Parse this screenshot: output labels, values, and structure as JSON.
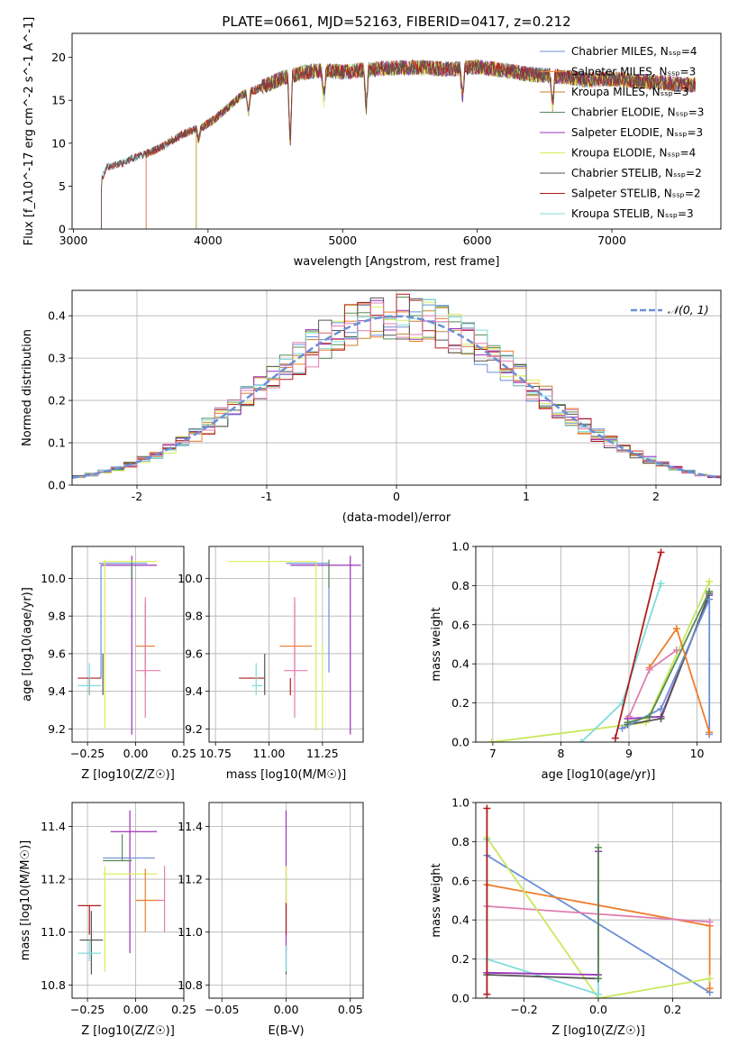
{
  "figure": {
    "title": "PLATE=0661, MJD=52163, FIBERID=0417, z=0.212"
  },
  "series_colors": {
    "chabrier_miles": "#6a8fd6",
    "salpeter_miles": "#ee7d2a",
    "kroupa_miles": "#c9822b",
    "chabrier_elodie": "#558b55",
    "salpeter_elodie": "#9b30b8",
    "kroupa_elodie": "#d9ee55",
    "chabrier_stelib": "#555555",
    "salpeter_stelib": "#b01c1c",
    "kroupa_stelib": "#7fdcdc",
    "extra_pink": "#e07fb0",
    "extra_lime": "#c8e85a",
    "normal_curve": "#6a8fd6"
  },
  "chart_data": [
    {
      "id": "spectrum",
      "type": "line",
      "title": "PLATE=0661, MJD=52163, FIBERID=0417, z=0.212",
      "xlabel": "wavelength [Angstrom, rest frame]",
      "ylabel": "Flux [f_λ10^-17 erg cm^-2 s^-1 A^-1]",
      "xlim": [
        2990,
        7810
      ],
      "ylim": [
        0,
        22.8
      ],
      "xticks": [
        3000,
        4000,
        5000,
        6000,
        7000
      ],
      "yticks": [
        0,
        5,
        10,
        15,
        20
      ],
      "grid": false,
      "legend_position": "right",
      "legend": [
        {
          "label": "Chabrier MILES, N_SSP=4",
          "color": "#6a8fd6"
        },
        {
          "label": "Salpeter MILES, N_SSP=3",
          "color": "#ee7d2a"
        },
        {
          "label": "Kroupa MILES, N_SSP=3",
          "color": "#c9822b"
        },
        {
          "label": "Chabrier ELODIE, N_SSP=3",
          "color": "#558b55"
        },
        {
          "label": "Salpeter ELODIE, N_SSP=3",
          "color": "#9b30b8"
        },
        {
          "label": "Kroupa ELODIE, N_SSP=4",
          "color": "#d9ee55"
        },
        {
          "label": "Chabrier STELIB, N_SSP=2",
          "color": "#555555"
        },
        {
          "label": "Salpeter STELIB, N_SSP=2",
          "color": "#b01c1c"
        },
        {
          "label": "Kroupa STELIB, N_SSP=3",
          "color": "#7fdcdc"
        }
      ],
      "continuum": {
        "x": [
          3200,
          3210,
          3250,
          3350,
          3450,
          3550,
          3650,
          3750,
          3850,
          3950,
          4050,
          4150,
          4250,
          4350,
          4450,
          4550,
          4700,
          4850,
          5000,
          5200,
          5400,
          5600,
          5800,
          6000,
          6200,
          6400,
          6600,
          6800,
          7000,
          7200,
          7400,
          7600
        ],
        "y": [
          0,
          6,
          7.2,
          7.6,
          8.3,
          8.8,
          9.5,
          10.5,
          11.3,
          11.8,
          12.8,
          14.2,
          15.6,
          16.2,
          16.9,
          17.6,
          18.2,
          18.5,
          18.3,
          18.6,
          18.8,
          18.8,
          18.6,
          18.9,
          18.5,
          18.0,
          17.8,
          17.4,
          17.5,
          17.2,
          17.0,
          16.8
        ]
      },
      "start_wavelengths": {
        "stelib": 3205,
        "elodie": 3910,
        "miles": 3540
      },
      "features": [
        {
          "name": "dip",
          "x": 3930,
          "y": 10.3
        },
        {
          "name": "dip",
          "x": 4300,
          "y": 13.6
        },
        {
          "name": "spike",
          "x": 4610,
          "y": 9.6
        },
        {
          "name": "dip",
          "x": 4860,
          "y": 15.0
        },
        {
          "name": "dip",
          "x": 5175,
          "y": 13.8
        },
        {
          "name": "dip",
          "x": 5890,
          "y": 15.2
        },
        {
          "name": "dip",
          "x": 6560,
          "y": 14.4
        }
      ]
    },
    {
      "id": "residual-histogram",
      "type": "histogram",
      "xlabel": "(data-model)/error",
      "ylabel": "Normed distribution",
      "xlim": [
        -2.5,
        2.5
      ],
      "ylim": [
        0,
        0.46
      ],
      "xticks": [
        -2,
        -1,
        0,
        1,
        2
      ],
      "yticks": [
        0.0,
        0.1,
        0.2,
        0.3,
        0.4
      ],
      "grid": true,
      "legend": [
        {
          "label": "𝒩(0, 1)",
          "color": "#6a8fd6",
          "style": "dashed"
        }
      ],
      "legend_position": "top-right",
      "bin_width": 0.1
    },
    {
      "id": "age-vs-z",
      "type": "errorbar",
      "xlabel": "Z [log10(Z/Z☉)]",
      "ylabel": "age [log10(age/yr)]",
      "xlim": [
        -0.33,
        0.25
      ],
      "ylim": [
        9.13,
        10.17
      ],
      "xticks": [
        -0.25,
        0.0,
        0.25
      ],
      "xtick_labels": [
        "−0.25",
        "0.00",
        "0.25"
      ],
      "yticks": [
        9.2,
        9.4,
        9.6,
        9.8,
        10.0
      ],
      "grid": true,
      "points": [
        {
          "color": "#6a8fd6",
          "x": -0.04,
          "xerr": [
            0.15,
            0.1
          ],
          "y": 10.08,
          "yerr": [
            0.0,
            0.0
          ]
        },
        {
          "color": "#6a8fd6",
          "x": -0.18,
          "xerr": [
            0.0,
            0.0
          ],
          "y": 9.47,
          "yerr": [
            0.0,
            0.6
          ]
        },
        {
          "color": "#9b30b8",
          "x": -0.02,
          "xerr": [
            0.16,
            0.13
          ],
          "y": 10.07,
          "yerr": [
            0.9,
            0.05
          ]
        },
        {
          "color": "#558b55",
          "x": -0.02,
          "xerr": [
            0.0,
            0.0
          ],
          "y": 10.1,
          "yerr": [
            0.1,
            0.0
          ]
        },
        {
          "color": "#d9ee55",
          "x": -0.05,
          "xerr": [
            0.12,
            0.16
          ],
          "y": 10.09,
          "yerr": [
            0.0,
            0.0
          ]
        },
        {
          "color": "#d9ee55",
          "x": -0.16,
          "xerr": [
            0.0,
            0.0
          ],
          "y": 9.65,
          "yerr": [
            0.45,
            0.45
          ]
        },
        {
          "color": "#ee7d2a",
          "x": 0.05,
          "xerr": [
            0.05,
            0.05
          ],
          "y": 9.64,
          "yerr": [
            0.16,
            0.23
          ]
        },
        {
          "color": "#e07fb0",
          "x": 0.05,
          "xerr": [
            0.05,
            0.08
          ],
          "y": 9.51,
          "yerr": [
            0.25,
            0.39
          ]
        },
        {
          "color": "#b01c1c",
          "x": -0.24,
          "xerr": [
            0.06,
            0.06
          ],
          "y": 9.47,
          "yerr": [
            0.09,
            0.0
          ]
        },
        {
          "color": "#555555",
          "x": -0.17,
          "xerr": [
            0.0,
            0.0
          ],
          "y": 9.47,
          "yerr": [
            0.09,
            0.13
          ]
        },
        {
          "color": "#7fdcdc",
          "x": -0.24,
          "xerr": [
            0.06,
            0.06
          ],
          "y": 9.43,
          "yerr": [
            0.05,
            0.12
          ]
        }
      ]
    },
    {
      "id": "age-vs-mass",
      "type": "errorbar",
      "xlabel": "mass [log10(M/M☉)]",
      "ylabel": "",
      "xlim": [
        10.72,
        11.44
      ],
      "ylim": [
        9.13,
        10.17
      ],
      "xticks": [
        10.75,
        11.0,
        11.25
      ],
      "xtick_labels": [
        "10.75",
        "11.00",
        "11.25"
      ],
      "yticks": [
        9.2,
        9.4,
        9.6,
        9.8,
        10.0
      ],
      "grid": true,
      "points": [
        {
          "color": "#6a8fd6",
          "x": 11.28,
          "xerr": [
            0.2,
            0.0
          ],
          "y": 10.08,
          "yerr": [
            0.58,
            0.0
          ]
        },
        {
          "color": "#9b30b8",
          "x": 11.38,
          "xerr": [
            0.28,
            0.05
          ],
          "y": 10.07,
          "yerr": [
            0.9,
            0.05
          ]
        },
        {
          "color": "#558b55",
          "x": 11.28,
          "xerr": [
            0.0,
            0.0
          ],
          "y": 10.1,
          "yerr": [
            0.15,
            0.0
          ]
        },
        {
          "color": "#d9ee55",
          "x": 11.22,
          "xerr": [
            0.41,
            0.0
          ],
          "y": 10.09,
          "yerr": [
            0.9,
            0.0
          ]
        },
        {
          "color": "#d9ee55",
          "x": 11.25,
          "xerr": [
            0.0,
            0.0
          ],
          "y": 9.65,
          "yerr": [
            0.45,
            0.0
          ]
        },
        {
          "color": "#ee7d2a",
          "x": 11.12,
          "xerr": [
            0.07,
            0.08
          ],
          "y": 9.64,
          "yerr": [
            0.16,
            0.23
          ]
        },
        {
          "color": "#e07fb0",
          "x": 11.12,
          "xerr": [
            0.05,
            0.06
          ],
          "y": 9.51,
          "yerr": [
            0.25,
            0.39
          ]
        },
        {
          "color": "#b01c1c",
          "x": 11.1,
          "xerr": [
            0.0,
            0.0
          ],
          "y": 9.47,
          "yerr": [
            0.09,
            0.0
          ]
        },
        {
          "color": "#b01c1c",
          "x": 10.98,
          "xerr": [
            0.12,
            0.0
          ],
          "y": 9.47,
          "yerr": [
            0.0,
            0.0
          ]
        },
        {
          "color": "#555555",
          "x": 10.98,
          "xerr": [
            0.0,
            0.0
          ],
          "y": 9.47,
          "yerr": [
            0.09,
            0.13
          ]
        },
        {
          "color": "#7fdcdc",
          "x": 10.94,
          "xerr": [
            0.02,
            0.03
          ],
          "y": 9.43,
          "yerr": [
            0.05,
            0.12
          ]
        }
      ]
    },
    {
      "id": "mass-weight-vs-age",
      "type": "line",
      "xlabel": "age [log10(age/yr)]",
      "ylabel": "mass weight",
      "xlim": [
        6.75,
        10.35
      ],
      "ylim": [
        0,
        1
      ],
      "xticks": [
        7,
        8,
        9,
        10
      ],
      "yticks": [
        0.0,
        0.2,
        0.4,
        0.6,
        0.8,
        1.0
      ],
      "grid": true,
      "series": [
        {
          "color": "#c8e85a",
          "x": [
            6.98,
            9.25,
            10.18
          ],
          "y": [
            0.0,
            0.1,
            0.82
          ]
        },
        {
          "color": "#7fdcdc",
          "x": [
            8.3,
            8.9,
            9.47
          ],
          "y": [
            0.0,
            0.2,
            0.81
          ]
        },
        {
          "color": "#b01c1c",
          "x": [
            8.8,
            9.47
          ],
          "y": [
            0.02,
            0.97
          ]
        },
        {
          "color": "#9b30b8",
          "x": [
            8.98,
            9.47,
            10.18
          ],
          "y": [
            0.12,
            0.13,
            0.75
          ]
        },
        {
          "color": "#555555",
          "x": [
            8.98,
            9.47,
            10.18
          ],
          "y": [
            0.09,
            0.12,
            0.76
          ]
        },
        {
          "color": "#6a8fd6",
          "x": [
            8.9,
            9.47,
            10.18,
            10.18
          ],
          "y": [
            0.07,
            0.17,
            0.73,
            0.04
          ]
        },
        {
          "color": "#ee7d2a",
          "x": [
            9.3,
            9.7,
            10.18
          ],
          "y": [
            0.38,
            0.58,
            0.05
          ]
        },
        {
          "color": "#e07fb0",
          "x": [
            9.0,
            9.3,
            9.7
          ],
          "y": [
            0.13,
            0.37,
            0.47
          ]
        },
        {
          "color": "#558b55",
          "x": [
            8.98,
            9.3,
            10.18
          ],
          "y": [
            0.1,
            0.13,
            0.77
          ]
        }
      ]
    },
    {
      "id": "mass-vs-z",
      "type": "errorbar",
      "xlabel": "Z [log10(Z/Z☉)]",
      "ylabel": "mass [log10(M/M☉)]",
      "xlim": [
        -0.33,
        0.25
      ],
      "ylim": [
        10.75,
        11.49
      ],
      "xticks": [
        -0.25,
        0.0,
        0.25
      ],
      "xtick_labels": [
        "−0.25",
        "0.00",
        "0.25"
      ],
      "yticks": [
        10.8,
        11.0,
        11.2,
        11.4
      ],
      "grid": true,
      "points": [
        {
          "color": "#9b30b8",
          "x": -0.03,
          "xerr": [
            0.1,
            0.14
          ],
          "y": 11.38,
          "yerr": [
            0.46,
            0.08
          ]
        },
        {
          "color": "#6a8fd6",
          "x": -0.02,
          "xerr": [
            0.15,
            0.12
          ],
          "y": 11.28,
          "yerr": [
            0.0,
            0.0
          ]
        },
        {
          "color": "#558b55",
          "x": -0.07,
          "xerr": [
            0.1,
            0.05
          ],
          "y": 11.27,
          "yerr": [
            0.0,
            0.1
          ]
        },
        {
          "color": "#d9ee55",
          "x": -0.05,
          "xerr": [
            0.12,
            0.16
          ],
          "y": 11.22,
          "yerr": [
            0.0,
            0.0
          ]
        },
        {
          "color": "#d9ee55",
          "x": -0.16,
          "xerr": [
            0.0,
            0.0
          ],
          "y": 11.1,
          "yerr": [
            0.25,
            0.15
          ]
        },
        {
          "color": "#ee7d2a",
          "x": 0.05,
          "xerr": [
            0.05,
            0.08
          ],
          "y": 11.12,
          "yerr": [
            0.12,
            0.12
          ]
        },
        {
          "color": "#e07fb0",
          "x": 0.15,
          "xerr": [
            0.04,
            0.0
          ],
          "y": 11.12,
          "yerr": [
            0.12,
            0.13
          ]
        },
        {
          "color": "#b01c1c",
          "x": -0.24,
          "xerr": [
            0.06,
            0.06
          ],
          "y": 11.1,
          "yerr": [
            0.11,
            0.0
          ]
        },
        {
          "color": "#555555",
          "x": -0.23,
          "xerr": [
            0.06,
            0.06
          ],
          "y": 10.97,
          "yerr": [
            0.13,
            0.11
          ]
        },
        {
          "color": "#7fdcdc",
          "x": -0.24,
          "xerr": [
            0.06,
            0.06
          ],
          "y": 10.92,
          "yerr": [
            0.03,
            0.05
          ]
        }
      ]
    },
    {
      "id": "mass-vs-ebv",
      "type": "errorbar",
      "xlabel": "E(B-V)",
      "ylabel": "",
      "xlim": [
        -0.06,
        0.06
      ],
      "ylim": [
        10.75,
        11.49
      ],
      "xticks": [
        -0.05,
        0.0,
        0.05
      ],
      "xtick_labels": [
        "−0.05",
        "0.00",
        "0.05"
      ],
      "yticks": [
        10.8,
        11.0,
        11.2,
        11.4
      ],
      "grid": true,
      "points": [
        {
          "color": "#9b30b8",
          "x": 0.0,
          "xerr": [
            0.0,
            0.0
          ],
          "y": 11.2,
          "yerr": [
            0.28,
            0.26
          ]
        },
        {
          "color": "#d9ee55",
          "x": 0.0,
          "xerr": [
            0.0,
            0.0
          ],
          "y": 11.1,
          "yerr": [
            0.0,
            0.15
          ]
        },
        {
          "color": "#b01c1c",
          "x": 0.0,
          "xerr": [
            0.0,
            0.0
          ],
          "y": 11.05,
          "yerr": [
            0.06,
            0.06
          ]
        },
        {
          "color": "#555555",
          "x": 0.0,
          "xerr": [
            0.0,
            0.0
          ],
          "y": 10.95,
          "yerr": [
            0.11,
            0.0
          ]
        },
        {
          "color": "#7fdcdc",
          "x": 0.0,
          "xerr": [
            0.0,
            0.0
          ],
          "y": 10.9,
          "yerr": [
            0.05,
            0.05
          ]
        }
      ]
    },
    {
      "id": "mass-weight-vs-z",
      "type": "line",
      "xlabel": "Z [log10(Z/Z☉)]",
      "ylabel": "mass weight",
      "xlim": [
        -0.33,
        0.33
      ],
      "ylim": [
        0,
        1
      ],
      "xticks": [
        -0.2,
        0.0,
        0.2
      ],
      "xtick_labels": [
        "−0.2",
        "0.0",
        "0.2"
      ],
      "yticks": [
        0.0,
        0.2,
        0.4,
        0.6,
        0.8,
        1.0
      ],
      "grid": true,
      "series": [
        {
          "color": "#6a8fd6",
          "x": [
            -0.3,
            0.3
          ],
          "y": [
            0.73,
            0.03
          ]
        },
        {
          "color": "#ee7d2a",
          "x": [
            -0.3,
            0.3,
            0.3
          ],
          "y": [
            0.58,
            0.37,
            0.05
          ]
        },
        {
          "color": "#e07fb0",
          "x": [
            -0.3,
            0.3
          ],
          "y": [
            0.47,
            0.39
          ]
        },
        {
          "color": "#c8e85a",
          "x": [
            -0.3,
            0.0,
            0.3
          ],
          "y": [
            0.82,
            0.0,
            0.1
          ]
        },
        {
          "color": "#7fdcdc",
          "x": [
            -0.3,
            -0.3,
            0.0,
            0.0
          ],
          "y": [
            0.81,
            0.2,
            0.02,
            0.1
          ]
        },
        {
          "color": "#9b30b8",
          "x": [
            -0.3,
            0.0,
            0.0
          ],
          "y": [
            0.13,
            0.12,
            0.75
          ]
        },
        {
          "color": "#555555",
          "x": [
            -0.3,
            0.0
          ],
          "y": [
            0.12,
            0.1
          ]
        },
        {
          "color": "#558b55",
          "x": [
            0.0,
            0.0
          ],
          "y": [
            0.1,
            0.77
          ]
        },
        {
          "color": "#b01c1c",
          "x": [
            -0.3,
            -0.3
          ],
          "y": [
            0.02,
            0.97
          ]
        }
      ]
    }
  ]
}
